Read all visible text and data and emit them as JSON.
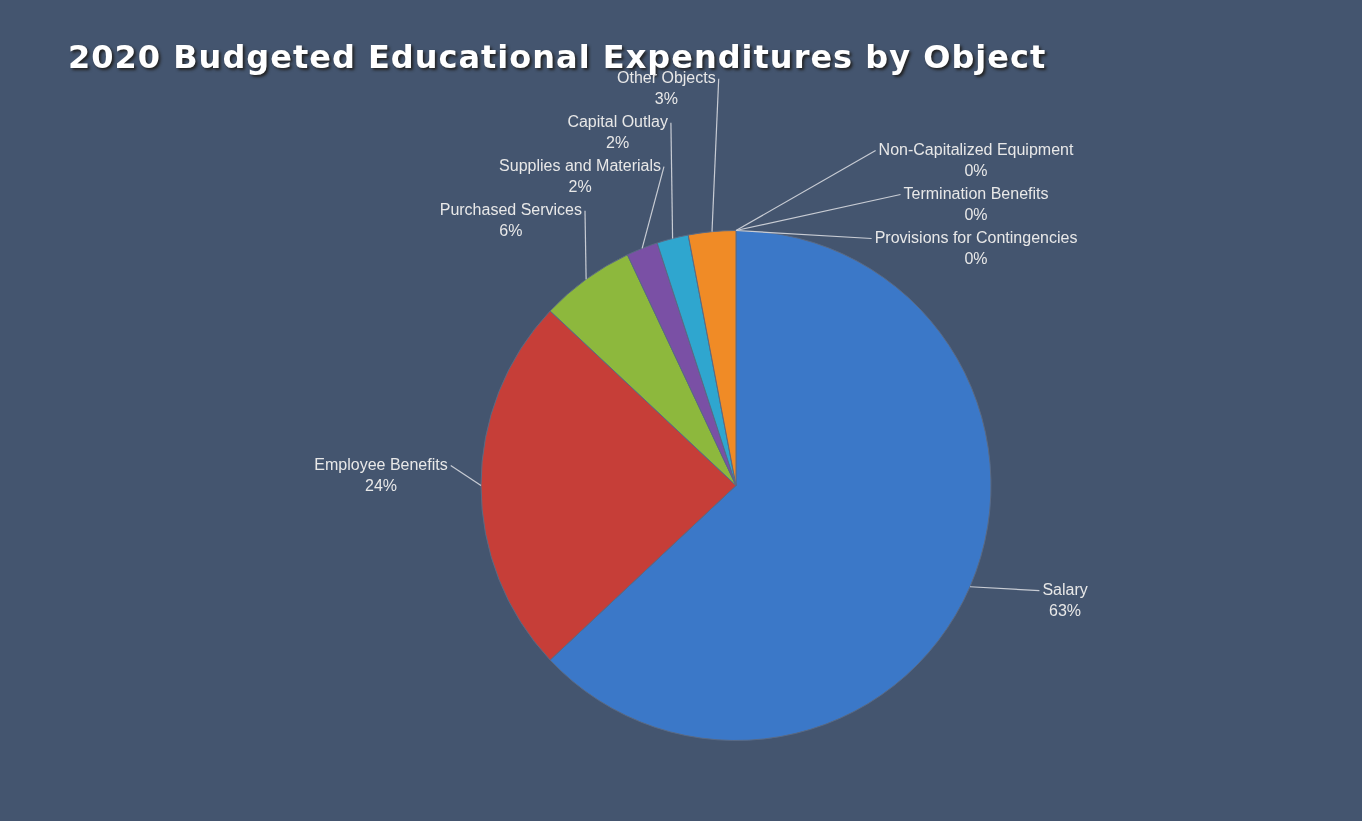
{
  "chart_data": {
    "type": "pie",
    "title": "2020 Budgeted Educational Expenditures by Object",
    "categories": [
      "Salary",
      "Employee Benefits",
      "Purchased Services",
      "Supplies and Materials",
      "Capital Outlay",
      "Other Objects",
      "Non-Capitalized Equipment",
      "Termination Benefits",
      "Provisions for Contingencies"
    ],
    "values": [
      63,
      24,
      6,
      2,
      2,
      3,
      0,
      0,
      0
    ],
    "value_labels": [
      "63%",
      "24%",
      "6%",
      "2%",
      "2%",
      "3%",
      "0%",
      "0%",
      "0%"
    ],
    "colors": [
      "#3b78c8",
      "#c63e38",
      "#8db83d",
      "#7a50a5",
      "#2fa6cf",
      "#f08b26",
      "#9bb0d0",
      "#b0b0b0",
      "#d8c050"
    ],
    "legend": false
  }
}
